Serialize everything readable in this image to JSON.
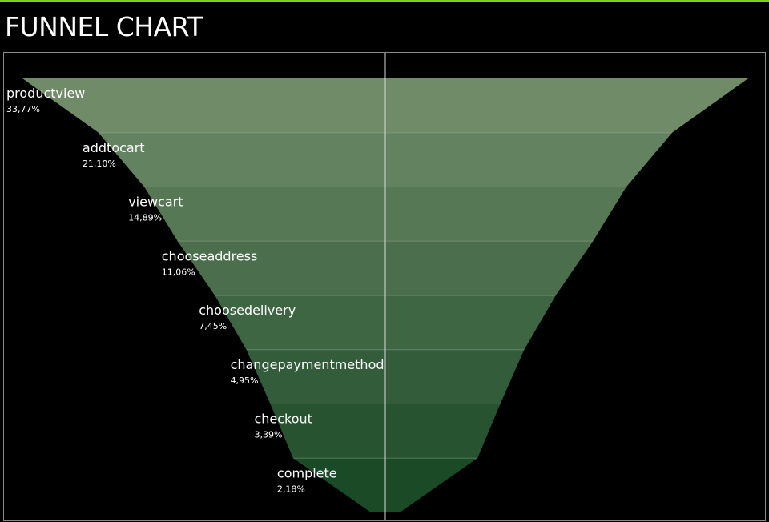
{
  "page": {
    "title": "FUNNEL CHART"
  },
  "colors": {
    "background": "#000000",
    "accent": "#7ad31a",
    "frame": "#8a8a8a",
    "segment_top": "#6f8b68",
    "segment_bottom": "#1b4a27",
    "center_line": "#d8d8d8"
  },
  "chart_data": {
    "type": "funnel",
    "title": "FUNNEL CHART",
    "categories": [
      "productview",
      "addtocart",
      "viewcart",
      "chooseaddress",
      "choosedelivery",
      "changepaymentmethod",
      "checkout",
      "complete"
    ],
    "values": [
      33.77,
      21.1,
      14.89,
      11.06,
      7.45,
      4.95,
      3.39,
      2.18
    ],
    "labels": [
      "33,77%",
      "21,10%",
      "14,89%",
      "11,06%",
      "7,45%",
      "4,95%",
      "3,39%",
      "2,18%"
    ],
    "unit": "%",
    "center_line": true
  }
}
